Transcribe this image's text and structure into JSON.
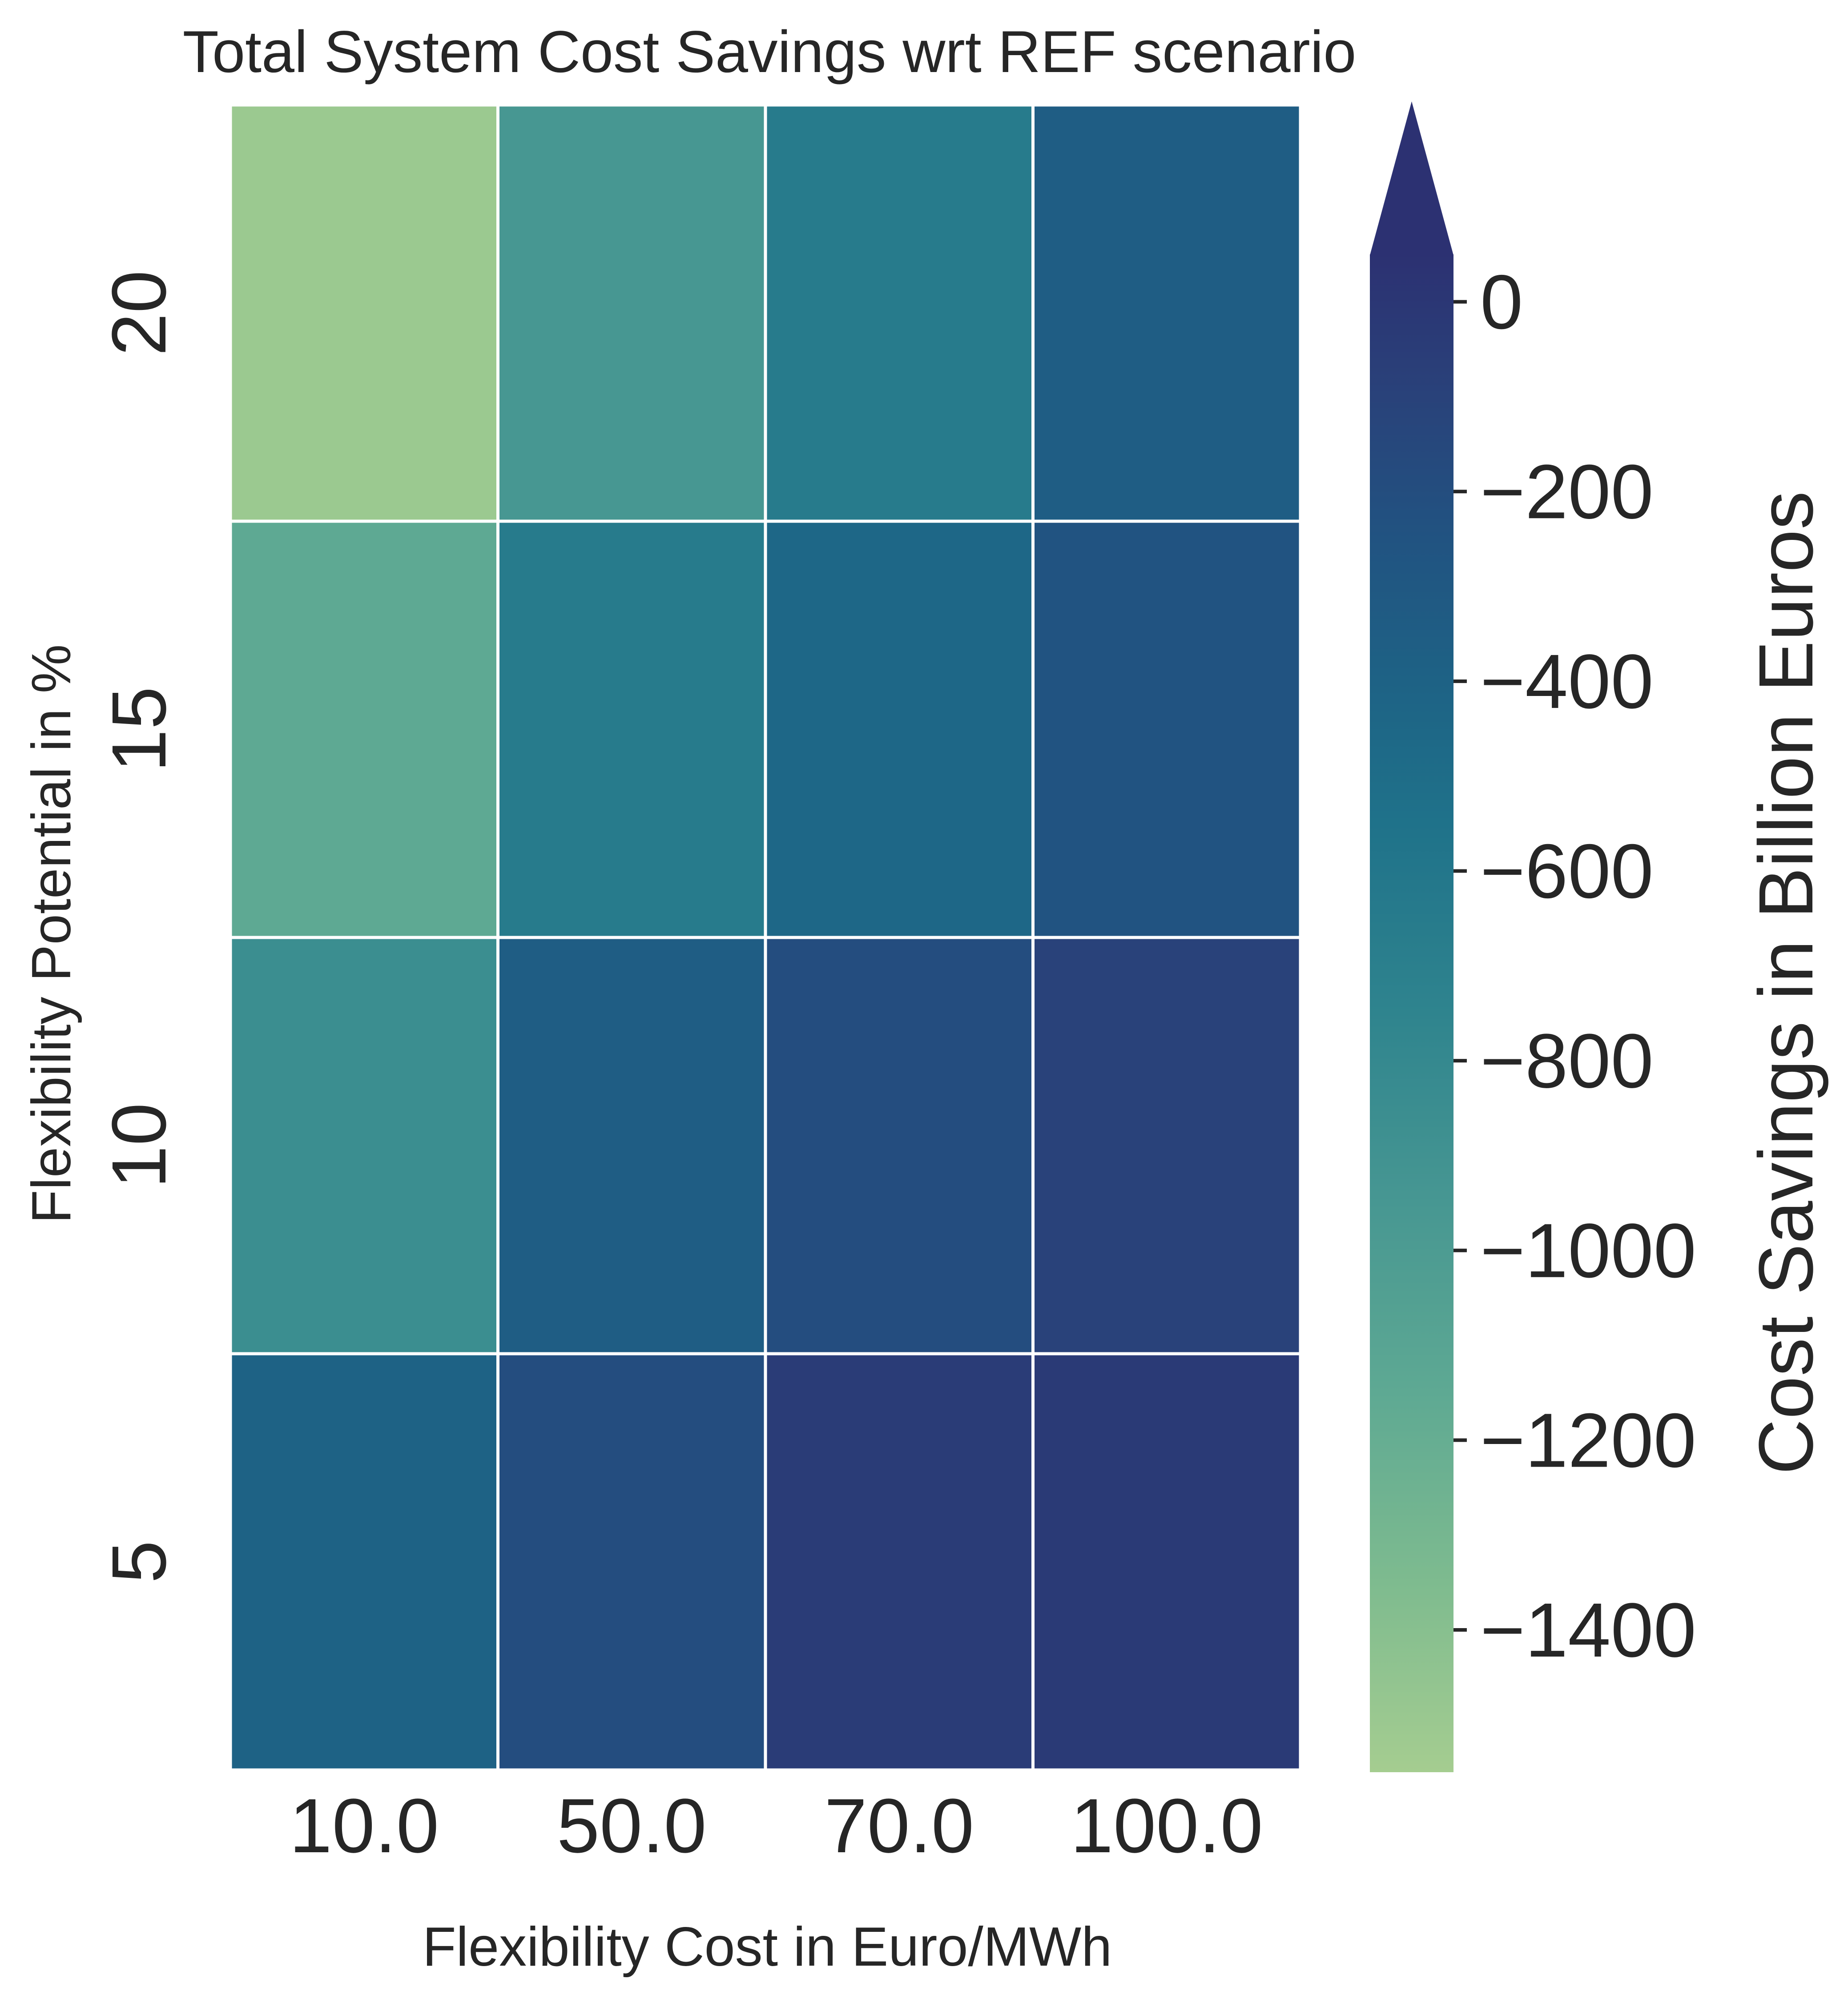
{
  "chart_data": {
    "type": "heatmap",
    "title": "Total System Cost Savings wrt REF scenario",
    "xlabel": "Flexibility Cost in Euro/MWh",
    "ylabel": "Flexibility Potential in %",
    "x_categories": [
      "10.0",
      "50.0",
      "70.0",
      "100.0"
    ],
    "y_categories": [
      "20",
      "15",
      "10",
      "5"
    ],
    "values": [
      [
        -1500,
        -950,
        -650,
        -350
      ],
      [
        -1150,
        -650,
        -450,
        -250
      ],
      [
        -850,
        -350,
        -200,
        -100
      ],
      [
        -400,
        -200,
        -50,
        -30
      ]
    ],
    "colorbar": {
      "label": "Cost Savings in Billion Euros",
      "range": [
        -1550,
        50
      ],
      "ticks": [
        0,
        -200,
        -400,
        -600,
        -800,
        -1000,
        -1200,
        -1400
      ],
      "tick_labels": [
        "0",
        "−200",
        "−400",
        "−600",
        "−800",
        "−1000",
        "−1200",
        "−1400"
      ],
      "extend": "max",
      "colormap": "crest",
      "color_stops": [
        {
          "value": -1550,
          "color": "#a5cd90"
        },
        {
          "value": -1350,
          "color": "#7ebb8f"
        },
        {
          "value": -1150,
          "color": "#5ea993"
        },
        {
          "value": -950,
          "color": "#479792"
        },
        {
          "value": -750,
          "color": "#2f848e"
        },
        {
          "value": -550,
          "color": "#1f728a"
        },
        {
          "value": -400,
          "color": "#1e6285"
        },
        {
          "value": -250,
          "color": "#215381"
        },
        {
          "value": -100,
          "color": "#29427a"
        },
        {
          "value": 50,
          "color": "#2c3172"
        }
      ]
    },
    "grid": false
  }
}
